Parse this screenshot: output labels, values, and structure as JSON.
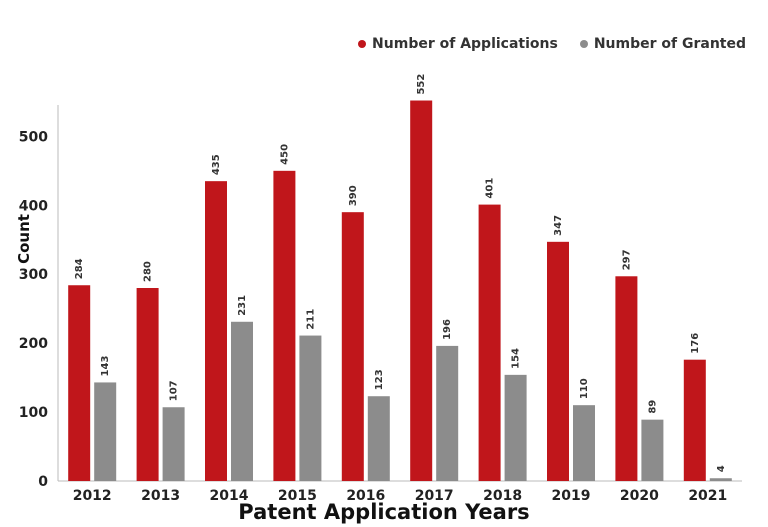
{
  "chart_data": {
    "type": "bar",
    "categories": [
      "2012",
      "2013",
      "2014",
      "2015",
      "2016",
      "2017",
      "2018",
      "2019",
      "2020",
      "2021"
    ],
    "series": [
      {
        "name": "Number of Applications",
        "color": "#c0161b",
        "values": [
          284,
          280,
          435,
          450,
          390,
          552,
          401,
          347,
          297,
          176
        ]
      },
      {
        "name": "Number of Granted",
        "color": "#8c8c8c",
        "values": [
          143,
          107,
          231,
          211,
          123,
          196,
          154,
          110,
          89,
          4
        ]
      }
    ],
    "title": "",
    "xlabel": "Patent Application Years",
    "ylabel": "Count",
    "ylim": [
      0,
      560
    ],
    "yticks": [
      0,
      100,
      200,
      300,
      400,
      500
    ],
    "grid": false,
    "legend": "top-right"
  }
}
